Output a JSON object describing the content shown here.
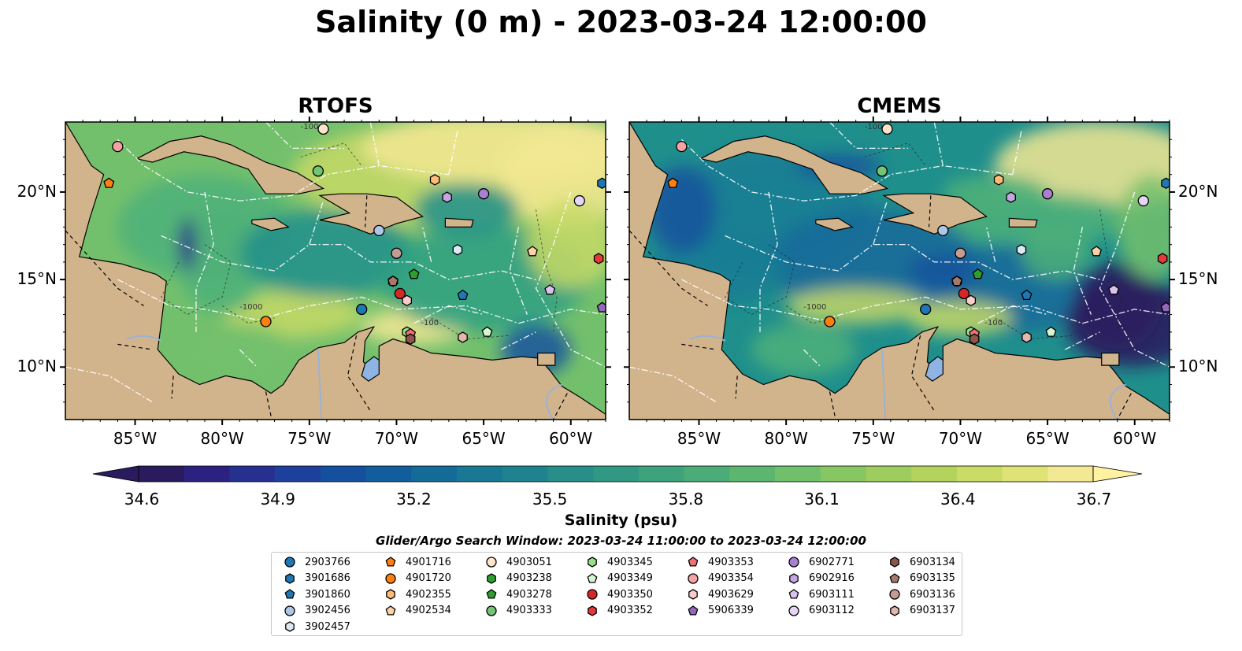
{
  "title": "Salinity (0 m) - 2023-03-24 12:00:00",
  "panels": [
    {
      "id": "rtofs",
      "title": "RTOFS"
    },
    {
      "id": "cmems",
      "title": "CMEMS"
    }
  ],
  "map": {
    "lon_range": [
      -89,
      -58
    ],
    "lat_range": [
      7,
      24
    ],
    "lon_ticks": [
      "85°W",
      "80°W",
      "75°W",
      "70°W",
      "65°W",
      "60°W"
    ],
    "lat_ticks": [
      "20°N",
      "15°N",
      "10°N"
    ],
    "land_color": "#d2b48c",
    "contour_labels": [
      "-100",
      "-1000"
    ]
  },
  "colorbar": {
    "label": "Salinity (psu)",
    "ticks": [
      "34.6",
      "34.9",
      "35.2",
      "35.5",
      "35.8",
      "36.1",
      "36.4",
      "36.7"
    ],
    "colormap": "haline",
    "extend": "both"
  },
  "search_window": "Glider/Argo Search Window: 2023-03-24 11:00:00 to 2023-03-24 12:00:00",
  "legend": [
    {
      "id": "2903766",
      "marker": "circle",
      "color": "#1f77b4"
    },
    {
      "id": "3901686",
      "marker": "hexagon",
      "color": "#1f77b4"
    },
    {
      "id": "3901860",
      "marker": "pentagon",
      "color": "#1f77b4"
    },
    {
      "id": "3902456",
      "marker": "circle",
      "color": "#aec7e8"
    },
    {
      "id": "3902457",
      "marker": "hexagon",
      "color": "#dbe9f6"
    },
    {
      "id": "4901716",
      "marker": "pentagon",
      "color": "#ff7f0e"
    },
    {
      "id": "4901720",
      "marker": "circle",
      "color": "#ff7f0e"
    },
    {
      "id": "4902355",
      "marker": "hexagon",
      "color": "#ffbb78"
    },
    {
      "id": "4902534",
      "marker": "pentagon",
      "color": "#ffd2a6"
    },
    {
      "id": "4903051",
      "marker": "circle",
      "color": "#ffe4cc"
    },
    {
      "id": "4903238",
      "marker": "hexagon",
      "color": "#2ca02c"
    },
    {
      "id": "4903278",
      "marker": "pentagon",
      "color": "#2ca02c"
    },
    {
      "id": "4903333",
      "marker": "circle",
      "color": "#74c476"
    },
    {
      "id": "4903345",
      "marker": "hexagon",
      "color": "#98df8a"
    },
    {
      "id": "4903349",
      "marker": "pentagon",
      "color": "#d7f5d0"
    },
    {
      "id": "4903350",
      "marker": "circle",
      "color": "#d62728"
    },
    {
      "id": "4903352",
      "marker": "hexagon",
      "color": "#e4393a"
    },
    {
      "id": "4903353",
      "marker": "pentagon",
      "color": "#f07174"
    },
    {
      "id": "4903354",
      "marker": "circle",
      "color": "#f4a3a2"
    },
    {
      "id": "4903629",
      "marker": "hexagon",
      "color": "#fbcccb"
    },
    {
      "id": "5906339",
      "marker": "pentagon",
      "color": "#9467bd"
    },
    {
      "id": "6902771",
      "marker": "circle",
      "color": "#a97fd0"
    },
    {
      "id": "6902916",
      "marker": "hexagon",
      "color": "#c5a5e3"
    },
    {
      "id": "6903111",
      "marker": "pentagon",
      "color": "#d9c2f0"
    },
    {
      "id": "6903112",
      "marker": "circle",
      "color": "#e5d5f6"
    },
    {
      "id": "6903134",
      "marker": "hexagon",
      "color": "#8c564b"
    },
    {
      "id": "6903135",
      "marker": "pentagon",
      "color": "#a8786c"
    },
    {
      "id": "6903136",
      "marker": "circle",
      "color": "#c49c94"
    },
    {
      "id": "6903137",
      "marker": "hexagon",
      "color": "#e0b8ad"
    }
  ],
  "floats": [
    {
      "id": "2903766",
      "lon": -72.0,
      "lat": 13.3
    },
    {
      "id": "3901686",
      "lon": -58.2,
      "lat": 20.5
    },
    {
      "id": "3901860",
      "lon": -66.2,
      "lat": 14.1
    },
    {
      "id": "3902456",
      "lon": -71.0,
      "lat": 17.8
    },
    {
      "id": "3902457",
      "lon": -66.5,
      "lat": 16.7
    },
    {
      "id": "4901716",
      "lon": -86.5,
      "lat": 20.5
    },
    {
      "id": "4901720",
      "lon": -77.5,
      "lat": 12.6
    },
    {
      "id": "4902355",
      "lon": -67.8,
      "lat": 20.7
    },
    {
      "id": "4902534",
      "lon": -62.2,
      "lat": 16.6
    },
    {
      "id": "4903051",
      "lon": -74.2,
      "lat": 23.6
    },
    {
      "id": "4903238",
      "lon": -70.2,
      "lat": 14.9
    },
    {
      "id": "4903278",
      "lon": -69.0,
      "lat": 15.3
    },
    {
      "id": "4903333",
      "lon": -74.5,
      "lat": 21.2
    },
    {
      "id": "4903345",
      "lon": -69.4,
      "lat": 12.0
    },
    {
      "id": "4903349",
      "lon": -64.8,
      "lat": 12.0
    },
    {
      "id": "4903350",
      "lon": -69.8,
      "lat": 14.2
    },
    {
      "id": "4903352",
      "lon": -58.4,
      "lat": 16.2
    },
    {
      "id": "4903353",
      "lon": -69.2,
      "lat": 11.9
    },
    {
      "id": "4903354",
      "lon": -86.0,
      "lat": 22.6
    },
    {
      "id": "4903629",
      "lon": -69.4,
      "lat": 13.8
    },
    {
      "id": "5906339",
      "lon": -58.2,
      "lat": 13.4
    },
    {
      "id": "6902771",
      "lon": -65.0,
      "lat": 19.9
    },
    {
      "id": "6902916",
      "lon": -67.1,
      "lat": 19.7
    },
    {
      "id": "6903111",
      "lon": -61.2,
      "lat": 14.4
    },
    {
      "id": "6903112",
      "lon": -59.5,
      "lat": 19.5
    },
    {
      "id": "6903134",
      "lon": -69.2,
      "lat": 11.6
    },
    {
      "id": "6903135",
      "lon": -70.2,
      "lat": 14.9
    },
    {
      "id": "6903136",
      "lon": -70.0,
      "lat": 16.5
    },
    {
      "id": "6903137",
      "lon": -66.2,
      "lat": 11.7
    }
  ]
}
